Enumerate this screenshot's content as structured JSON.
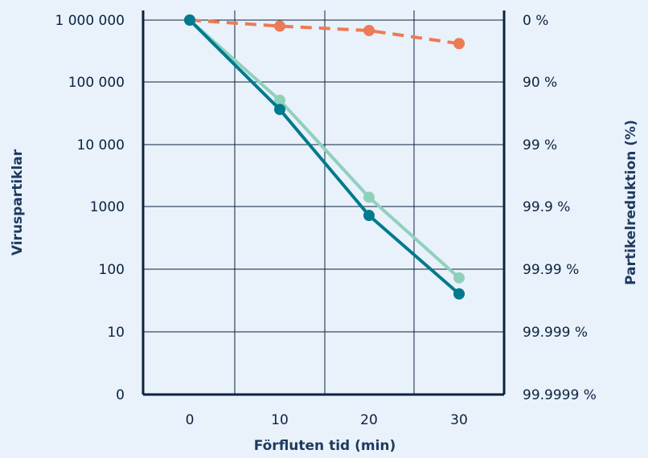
{
  "chart_data": {
    "type": "line",
    "xlabel": "Förfluten tid (min)",
    "ylabel": "Viruspartiklar",
    "y2label": "Partikelreduktion (%)",
    "x_ticks": [
      "0",
      "10",
      "20",
      "30"
    ],
    "y_ticks": [
      "0",
      "10",
      "100",
      "1000",
      "10 000",
      "100 000",
      "1 000 000"
    ],
    "y2_ticks": [
      "99.9999 %",
      "99.999 %",
      "99.99 %",
      "99.9 %",
      "99 %",
      "90 %",
      "0 %"
    ],
    "y_scale": "log",
    "grid": true,
    "series": [
      {
        "color": "#ec7a55",
        "style": "dashed",
        "x": [
          0,
          10,
          20,
          30
        ],
        "y": [
          1000000,
          800000,
          680000,
          420000
        ]
      },
      {
        "color": "#8fd0bd",
        "style": "solid",
        "x": [
          0,
          10,
          20,
          30
        ],
        "y": [
          1000000,
          52000,
          1450,
          74
        ]
      },
      {
        "color": "#007a8c",
        "style": "solid",
        "x": [
          0,
          10,
          20,
          30
        ],
        "y": [
          1000000,
          37000,
          740,
          41
        ]
      }
    ]
  }
}
